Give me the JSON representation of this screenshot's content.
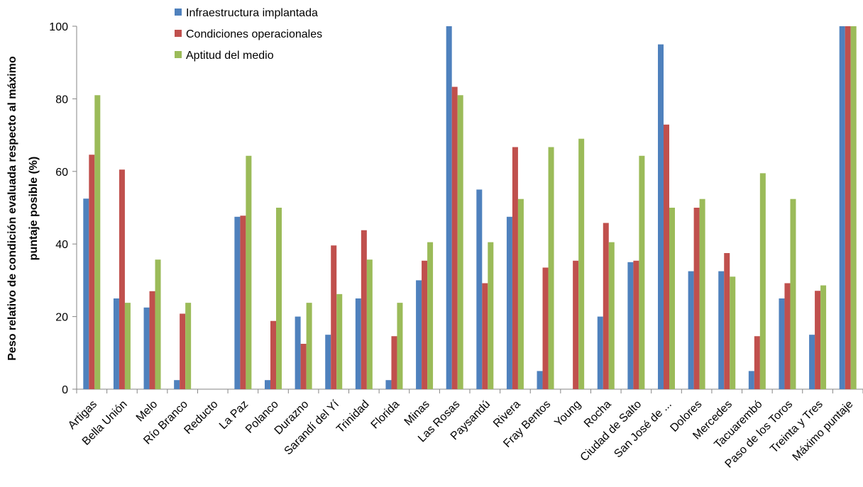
{
  "chart_data": {
    "type": "bar",
    "ylabel": [
      "Peso relativo de condición evaluada respecto al máximo",
      "puntaje posible (%)"
    ],
    "ylim": [
      0,
      100
    ],
    "yticks": [
      0,
      20,
      40,
      60,
      80,
      100
    ],
    "legend_position": "top-left",
    "categories": [
      "Artigas",
      "Bella Unión",
      "Melo",
      "Río Branco",
      "Reducto",
      "La Paz",
      "Polanco",
      "Durazno",
      "Sarandí del Yí",
      "Trinidad",
      "Florida",
      "Minas",
      "Las Rosas",
      "Paysandú",
      "Rivera",
      "Fray Bentos",
      "Young",
      "Rocha",
      "Ciudad de Salto",
      "San José de ...",
      "Dolores",
      "Mercedes",
      "Tacuarembó",
      "Paso de los Toros",
      "Treinta y Tres",
      "Máximo puntaje"
    ],
    "series": [
      {
        "name": "Infraestructura implantada",
        "color": "#4f81bd",
        "values": [
          52.5,
          25,
          22.5,
          2.5,
          0,
          47.5,
          2.5,
          20,
          15,
          25,
          2.5,
          30,
          100,
          55,
          47.5,
          5,
          0,
          20,
          35,
          95,
          32.5,
          32.5,
          5,
          25,
          15,
          100
        ]
      },
      {
        "name": "Condiciones operacionales",
        "color": "#c0504d",
        "values": [
          64.6,
          60.5,
          27,
          20.8,
          0,
          47.8,
          18.8,
          12.5,
          39.6,
          43.8,
          14.6,
          35.4,
          83.3,
          29.2,
          66.7,
          33.5,
          35.4,
          45.8,
          35.4,
          72.9,
          50,
          37.5,
          14.6,
          29.2,
          27.1,
          100
        ]
      },
      {
        "name": "Aptitud del medio",
        "color": "#9bbb59",
        "values": [
          81,
          23.8,
          35.7,
          23.8,
          0,
          64.3,
          50,
          23.8,
          26.2,
          35.7,
          23.8,
          40.5,
          81,
          40.5,
          52.4,
          66.7,
          69,
          40.5,
          64.3,
          50,
          52.4,
          31,
          59.5,
          52.4,
          28.6,
          100
        ]
      }
    ]
  }
}
